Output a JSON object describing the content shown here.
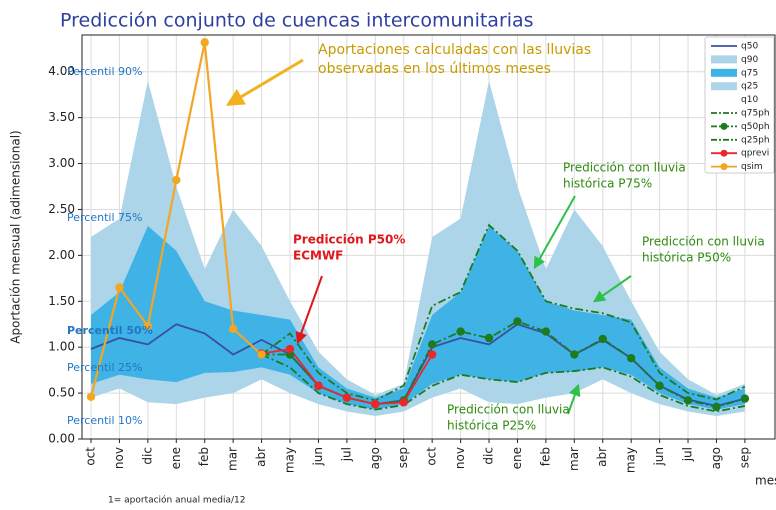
{
  "chart_data": {
    "type": "line",
    "title": "Predicción conjunto de cuencas intercomunitarias",
    "y_label": "Aportación mensual (adimensional)",
    "x_label": "mes",
    "footnote": "1= aportación anual media/12",
    "categories": [
      "oct",
      "nov",
      "dic",
      "ene",
      "feb",
      "mar",
      "abr",
      "may",
      "jun",
      "jul",
      "ago",
      "sep",
      "oct",
      "nov",
      "dic",
      "ene",
      "feb",
      "mar",
      "abr",
      "may",
      "jun",
      "jul",
      "ago",
      "sep"
    ],
    "ylim": [
      0,
      4.4
    ],
    "yticks": [
      {
        "value": 0,
        "label": "0.00"
      },
      {
        "value": 0.5,
        "label": "0.50"
      },
      {
        "value": 1,
        "label": "1.00"
      },
      {
        "value": 1.5,
        "label": "1.50"
      },
      {
        "value": 2,
        "label": "2.00"
      },
      {
        "value": 2.5,
        "label": "2.50"
      },
      {
        "value": 3,
        "label": "3.00"
      },
      {
        "value": 3.5,
        "label": "3.50"
      },
      {
        "value": 4,
        "label": "4.00"
      }
    ],
    "grid": true,
    "legend": "upper right",
    "series": [
      {
        "name": "q50",
        "color": "#3b4fa0",
        "values": [
          0.98,
          1.1,
          1.03,
          1.25,
          1.15,
          0.92,
          1.08,
          0.92,
          0.58,
          0.45,
          0.38,
          0.42,
          1.0,
          1.1,
          1.03,
          1.25,
          1.15,
          0.92,
          1.08,
          0.88,
          0.58,
          0.43,
          0.36,
          0.44
        ]
      },
      {
        "name": "q90",
        "color": "#acd5ea",
        "fill_to": "q10",
        "values": [
          2.2,
          2.4,
          3.9,
          2.75,
          1.85,
          2.5,
          2.1,
          1.5,
          0.95,
          0.65,
          0.48,
          0.6,
          2.2,
          2.4,
          3.9,
          2.75,
          1.85,
          2.5,
          2.1,
          1.5,
          0.95,
          0.65,
          0.48,
          0.6
        ]
      },
      {
        "name": "q75",
        "color": "#3fb3e6",
        "fill_to": "q25",
        "values": [
          1.35,
          1.6,
          2.32,
          2.05,
          1.5,
          1.4,
          1.35,
          1.3,
          0.78,
          0.55,
          0.45,
          0.55,
          1.35,
          1.6,
          2.32,
          2.05,
          1.5,
          1.4,
          1.35,
          1.3,
          0.78,
          0.55,
          0.45,
          0.55
        ]
      },
      {
        "name": "q25",
        "color": "#acd5ea",
        "values": [
          0.6,
          0.7,
          0.65,
          0.62,
          0.72,
          0.73,
          0.78,
          0.7,
          0.5,
          0.38,
          0.32,
          0.38,
          0.6,
          0.7,
          0.65,
          0.62,
          0.72,
          0.73,
          0.78,
          0.7,
          0.5,
          0.38,
          0.32,
          0.38
        ]
      },
      {
        "name": "q10",
        "color": "#ffffff",
        "values": [
          0.45,
          0.55,
          0.4,
          0.38,
          0.45,
          0.5,
          0.65,
          0.5,
          0.38,
          0.3,
          0.25,
          0.3,
          0.45,
          0.55,
          0.4,
          0.38,
          0.45,
          0.5,
          0.65,
          0.5,
          0.38,
          0.3,
          0.25,
          0.3
        ]
      },
      {
        "name": "q75ph",
        "color": "#1e7a1e",
        "linestyle": "dashdot",
        "values": [
          null,
          null,
          null,
          null,
          null,
          null,
          0.92,
          1.15,
          0.72,
          0.5,
          0.42,
          0.58,
          1.45,
          1.6,
          2.33,
          2.05,
          1.5,
          1.42,
          1.37,
          1.27,
          0.72,
          0.5,
          0.43,
          0.57
        ]
      },
      {
        "name": "q50ph",
        "color": "#1e7a1e",
        "linestyle": "dashdot",
        "marker": true,
        "values": [
          null,
          null,
          null,
          null,
          null,
          null,
          0.92,
          0.92,
          0.58,
          0.45,
          0.38,
          0.42,
          1.03,
          1.17,
          1.1,
          1.28,
          1.17,
          0.92,
          1.09,
          0.88,
          0.58,
          0.42,
          0.35,
          0.44
        ]
      },
      {
        "name": "q25ph",
        "color": "#1e7a1e",
        "linestyle": "dashdot",
        "values": [
          null,
          null,
          null,
          null,
          null,
          null,
          0.92,
          0.78,
          0.5,
          0.38,
          0.32,
          0.37,
          0.58,
          0.7,
          0.65,
          0.62,
          0.72,
          0.74,
          0.78,
          0.68,
          0.48,
          0.36,
          0.3,
          0.36
        ]
      },
      {
        "name": "qprevi",
        "color": "#e8282a",
        "marker": true,
        "values": [
          null,
          null,
          null,
          null,
          null,
          null,
          0.93,
          0.98,
          0.58,
          0.45,
          0.38,
          0.4,
          0.92,
          null,
          null,
          null,
          null,
          null,
          null,
          null,
          null,
          null,
          null,
          null
        ]
      },
      {
        "name": "qsim",
        "color": "#f2a623",
        "marker": true,
        "values": [
          0.46,
          1.65,
          1.23,
          2.82,
          4.32,
          1.2,
          0.92,
          null,
          null,
          null,
          null,
          null,
          null,
          null,
          null,
          null,
          null,
          null,
          null,
          null,
          null,
          null,
          null,
          null
        ]
      }
    ],
    "annotations": [
      {
        "color": "#c89b00",
        "text": [
          "Aportaciones calculadas con las lluvias",
          "observadas en los últimos meses"
        ]
      },
      {
        "color": "#e0161b",
        "text": [
          "Predicción P50%",
          "ECMWF"
        ]
      },
      {
        "color": "#2e8b0e",
        "text": [
          "Predicción con lluvia",
          "histórica P75%"
        ]
      },
      {
        "color": "#2e8b0e",
        "text": [
          "Predicción con lluvia",
          "histórica P50%"
        ]
      },
      {
        "color": "#2e8b0e",
        "text": [
          "Predicción con lluvia",
          "histórica P25%"
        ]
      }
    ],
    "percentile_labels": [
      "Percentil 90%",
      "Percentil 75%",
      "Percentil 50%",
      "Percentil 25%",
      "Percentil 10%"
    ],
    "percentile_color": "#2277c4"
  }
}
